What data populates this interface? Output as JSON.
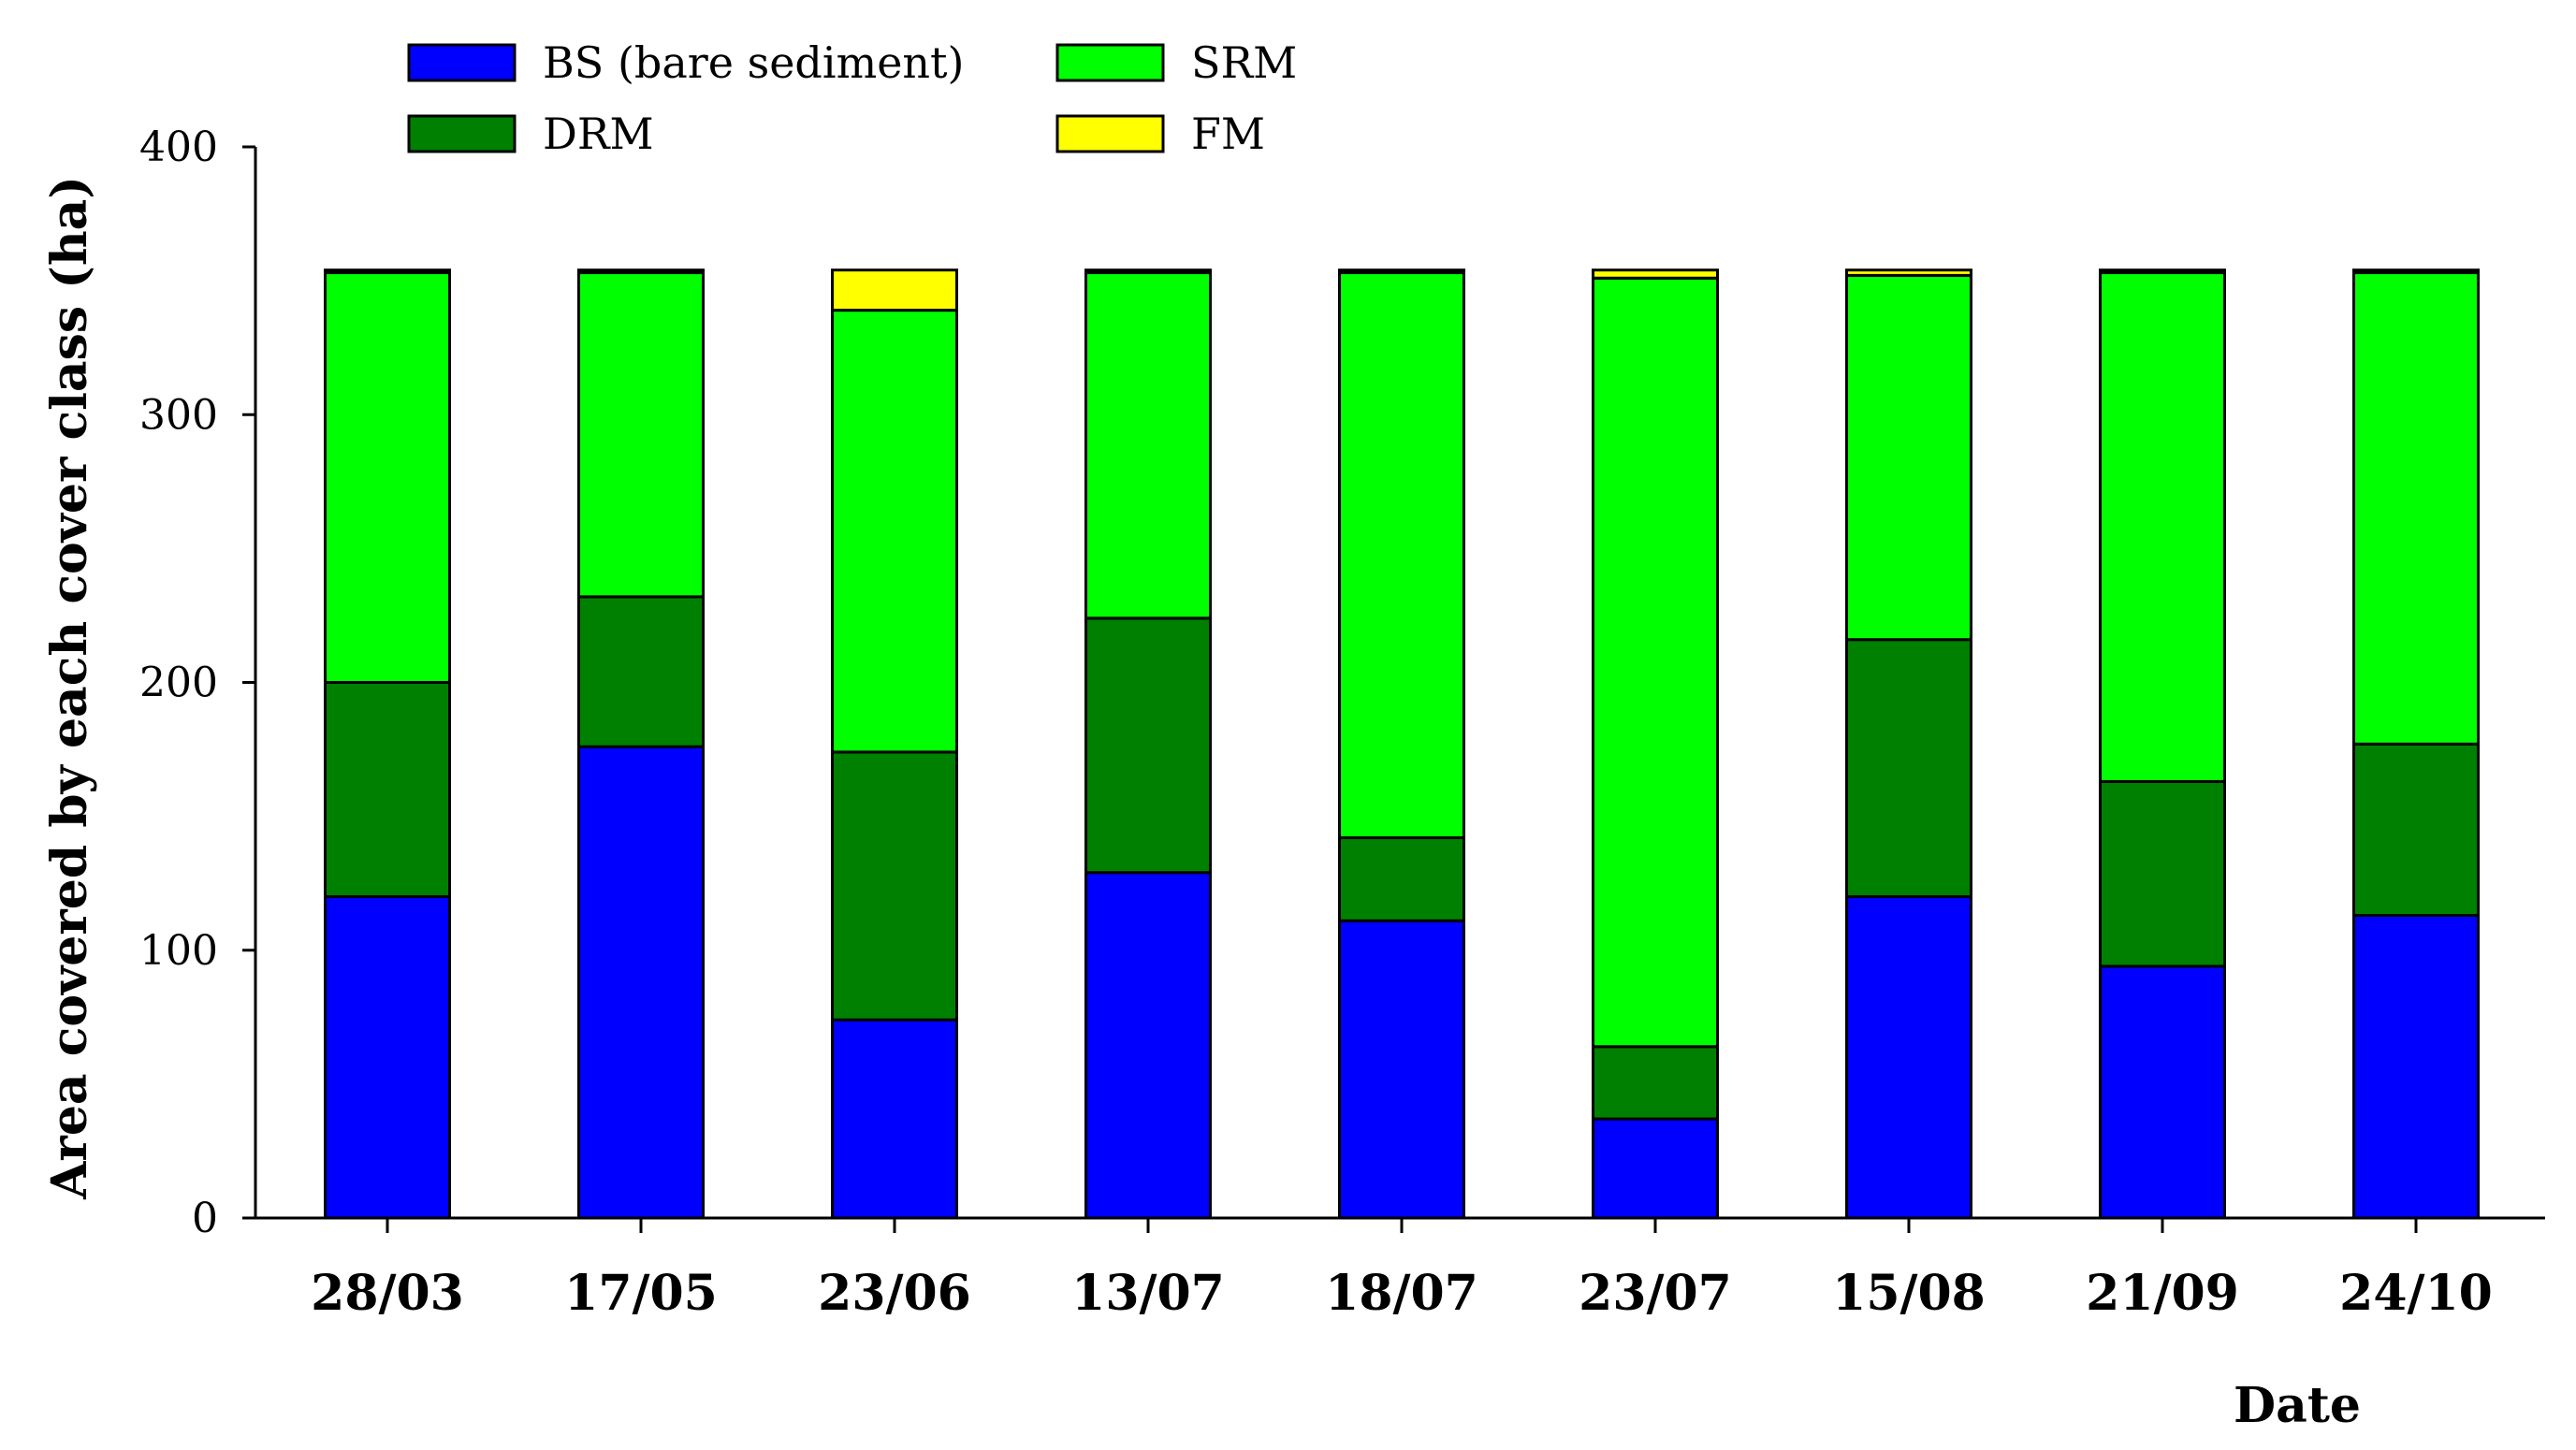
{
  "chart_data": {
    "type": "bar",
    "stacked": true,
    "title": "",
    "xlabel": "Date",
    "ylabel": "Area covered by each cover class (ha)",
    "ylim": [
      0,
      400
    ],
    "yticks": [
      0,
      100,
      200,
      300,
      400
    ],
    "categories": [
      "28/03",
      "17/05",
      "23/06",
      "13/07",
      "18/07",
      "23/07",
      "15/08",
      "21/09",
      "24/10"
    ],
    "series": [
      {
        "name": "BS (bare sediment)",
        "color": "#0000ff",
        "values": [
          120,
          176,
          74,
          129,
          111,
          37,
          120,
          94,
          113
        ]
      },
      {
        "name": "DRM",
        "color": "#008000",
        "values": [
          80,
          56,
          100,
          95,
          31,
          27,
          96,
          69,
          64
        ]
      },
      {
        "name": "SRM",
        "color": "#00ff00",
        "values": [
          153,
          121,
          165,
          129,
          211,
          287,
          136,
          190,
          176
        ]
      },
      {
        "name": "FM",
        "color": "#ffff00",
        "values": [
          1,
          1,
          15,
          1,
          1,
          3,
          2,
          1,
          1
        ]
      }
    ],
    "legend": [
      {
        "name": "BS (bare sediment)",
        "color": "#0000ff"
      },
      {
        "name": "SRM",
        "color": "#00ff00"
      },
      {
        "name": "DRM",
        "color": "#008000"
      },
      {
        "name": "FM",
        "color": "#ffff00"
      }
    ],
    "legend_position": "top-left",
    "grid": false
  }
}
